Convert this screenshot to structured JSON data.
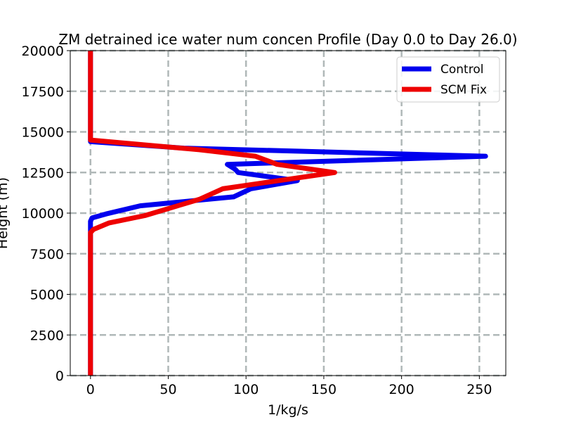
{
  "chart_data": {
    "type": "line",
    "title": "ZM detrained ice water num concen Profile (Day 0.0 to Day 26.0)",
    "xlabel": "1/kg/s",
    "ylabel": "Height (m)",
    "xlim": [
      -13,
      267
    ],
    "ylim": [
      0,
      20000
    ],
    "xticks": [
      0,
      50,
      100,
      150,
      200,
      250
    ],
    "yticks": [
      0,
      2500,
      5000,
      7500,
      10000,
      12500,
      15000,
      17500,
      20000
    ],
    "grid": true,
    "legend_position": "top-right",
    "series": [
      {
        "name": "Control",
        "color": "#0000ee",
        "x": [
          0,
          0,
          0,
          0,
          0,
          0,
          0,
          0,
          0,
          1,
          10,
          32,
          92,
          103,
          133,
          95,
          93,
          88,
          254,
          60,
          0,
          0,
          0
        ],
        "y": [
          0,
          2500,
          5000,
          7500,
          8500,
          8800,
          8900,
          9000,
          9500,
          9700,
          9950,
          10450,
          11000,
          11500,
          12000,
          12500,
          12700,
          13000,
          13500,
          14000,
          14400,
          17500,
          20000
        ]
      },
      {
        "name": "SCM Fix",
        "color": "#ee0000",
        "x": [
          0,
          0,
          0,
          0,
          0,
          0,
          2,
          12,
          35,
          70,
          85,
          110,
          157,
          120,
          106,
          70,
          0,
          0,
          0
        ],
        "y": [
          0,
          2500,
          5000,
          7500,
          8500,
          8800,
          9000,
          9400,
          9850,
          10850,
          11500,
          11850,
          12500,
          13000,
          13500,
          13900,
          14500,
          17500,
          20000
        ]
      }
    ]
  }
}
